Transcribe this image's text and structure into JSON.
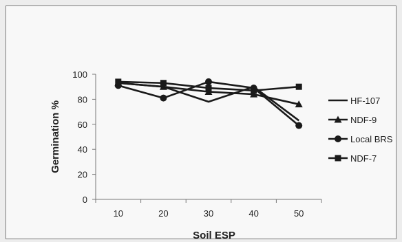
{
  "chart_data": {
    "type": "line",
    "title": "",
    "xlabel": "Soil ESP",
    "ylabel": "Germination %",
    "x": [
      10,
      20,
      30,
      40,
      50
    ],
    "x_ticks": [
      "10",
      "20",
      "30",
      "40",
      "50"
    ],
    "ylim": [
      0,
      100
    ],
    "y_ticks": [
      "0",
      "20",
      "40",
      "60",
      "80",
      "100"
    ],
    "grid": false,
    "legend_position": "right",
    "series": [
      {
        "name": "HF-107",
        "marker": "none",
        "color": "#1a1a1a",
        "values": [
          93,
          90,
          78,
          90,
          63
        ]
      },
      {
        "name": "NDF-9",
        "marker": "triangle",
        "color": "#1a1a1a",
        "values": [
          93,
          90,
          86,
          84,
          76
        ]
      },
      {
        "name": "Local BRS",
        "marker": "circle",
        "color": "#1a1a1a",
        "values": [
          91,
          81,
          94,
          89,
          59
        ]
      },
      {
        "name": "NDF-7",
        "marker": "square",
        "color": "#1a1a1a",
        "values": [
          94,
          93,
          89,
          87,
          90
        ]
      }
    ]
  }
}
